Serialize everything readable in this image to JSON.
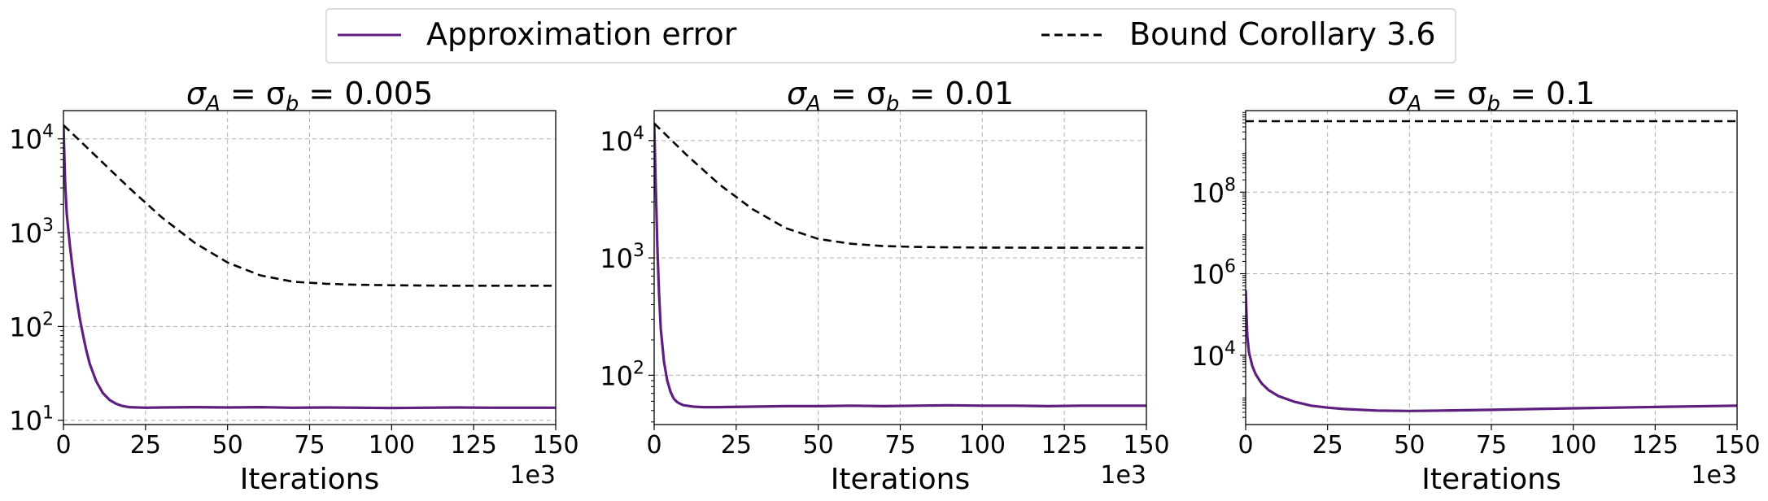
{
  "legend": {
    "items": [
      {
        "label": "Approximation error",
        "style": "solid",
        "color": "#5e1f7e"
      },
      {
        "label": "Bound Corollary 3.6",
        "style": "dashed",
        "color": "#000000"
      }
    ],
    "placement": "top-center"
  },
  "colors": {
    "error": "#5e1f7e",
    "bound": "#000000",
    "grid": "#b0b0b0"
  },
  "chart_data": [
    {
      "type": "line",
      "title_main": "σ",
      "title_sub1": "A",
      "title_mid": " = σ",
      "title_sub2": "b",
      "title_val": " = 0.005",
      "xlabel": "Iterations",
      "xscale_label": "1e3",
      "xlim": [
        0,
        150
      ],
      "xticks": [
        0,
        25,
        50,
        75,
        100,
        125,
        150
      ],
      "yscale": "log",
      "ylim": [
        9,
        20000
      ],
      "yticks": [
        10,
        100,
        1000,
        10000
      ],
      "ytick_labels": [
        {
          "base": "10",
          "exp": "1"
        },
        {
          "base": "10",
          "exp": "2"
        },
        {
          "base": "10",
          "exp": "3"
        },
        {
          "base": "10",
          "exp": "4"
        }
      ],
      "grid": true,
      "series": [
        {
          "name": "Approximation error",
          "style": "solid",
          "x": [
            0,
            0.5,
            1,
            2,
            3,
            4,
            5,
            6,
            7,
            8,
            10,
            12,
            14,
            16,
            18,
            20,
            25,
            30,
            40,
            50,
            60,
            70,
            80,
            90,
            100,
            110,
            120,
            130,
            140,
            150
          ],
          "y": [
            14000,
            3500,
            1600,
            700,
            360,
            200,
            120,
            80,
            55,
            40,
            26,
            19.5,
            16.5,
            15,
            14.2,
            13.8,
            13.6,
            13.7,
            13.8,
            13.7,
            13.8,
            13.6,
            13.7,
            13.6,
            13.5,
            13.6,
            13.7,
            13.6,
            13.6,
            13.6
          ]
        },
        {
          "name": "Bound Corollary 3.6",
          "style": "dashed",
          "x": [
            0,
            10,
            20,
            30,
            40,
            50,
            60,
            70,
            80,
            90,
            100,
            110,
            120,
            130,
            140,
            150
          ],
          "y": [
            14000,
            6500,
            3000,
            1450,
            780,
            480,
            350,
            300,
            285,
            278,
            275,
            273,
            272,
            272,
            272,
            272
          ]
        }
      ]
    },
    {
      "type": "line",
      "title_main": "σ",
      "title_sub1": "A",
      "title_mid": " = σ",
      "title_sub2": "b",
      "title_val": " = 0.01",
      "xlabel": "Iterations",
      "xscale_label": "1e3",
      "xlim": [
        0,
        150
      ],
      "xticks": [
        0,
        25,
        50,
        75,
        100,
        125,
        150
      ],
      "yscale": "log",
      "ylim": [
        38,
        18000
      ],
      "yticks": [
        100,
        1000,
        10000
      ],
      "ytick_labels": [
        {
          "base": "10",
          "exp": "2"
        },
        {
          "base": "10",
          "exp": "3"
        },
        {
          "base": "10",
          "exp": "4"
        }
      ],
      "grid": true,
      "series": [
        {
          "name": "Approximation error",
          "style": "solid",
          "x": [
            0,
            0.5,
            1,
            1.5,
            2,
            3,
            4,
            5,
            6,
            7,
            8,
            9,
            10,
            12,
            15,
            20,
            30,
            40,
            50,
            60,
            70,
            80,
            90,
            100,
            110,
            120,
            130,
            140,
            150
          ],
          "y": [
            14000,
            4000,
            1200,
            500,
            250,
            130,
            90,
            72,
            63,
            59,
            57,
            55.5,
            55,
            54,
            53.5,
            53.5,
            54,
            54.5,
            54.5,
            55,
            54.5,
            55,
            55.5,
            55,
            55,
            54.5,
            55,
            55,
            55
          ]
        },
        {
          "name": "Bound Corollary 3.6",
          "style": "dashed",
          "x": [
            0,
            10,
            20,
            30,
            40,
            50,
            60,
            70,
            80,
            90,
            100,
            110,
            120,
            130,
            140,
            150
          ],
          "y": [
            14000,
            7500,
            4200,
            2600,
            1800,
            1450,
            1320,
            1260,
            1240,
            1230,
            1225,
            1222,
            1220,
            1220,
            1220,
            1220
          ]
        }
      ]
    },
    {
      "type": "line",
      "title_main": "σ",
      "title_sub1": "A",
      "title_mid": " = σ",
      "title_sub2": "b",
      "title_val": " = 0.1",
      "xlabel": "Iterations",
      "xscale_label": "1e3",
      "xlim": [
        0,
        150
      ],
      "xticks": [
        0,
        25,
        50,
        75,
        100,
        125,
        150
      ],
      "yscale": "log",
      "ylim": [
        200,
        10000000000
      ],
      "yticks": [
        10000,
        1000000,
        100000000
      ],
      "ytick_labels": [
        {
          "base": "10",
          "exp": "4"
        },
        {
          "base": "10",
          "exp": "6"
        },
        {
          "base": "10",
          "exp": "8"
        }
      ],
      "grid": true,
      "series": [
        {
          "name": "Approximation error",
          "style": "solid",
          "x": [
            0,
            0.5,
            1,
            2,
            3,
            4,
            5,
            7,
            10,
            15,
            20,
            25,
            30,
            40,
            50,
            60,
            75,
            100,
            125,
            150
          ],
          "y": [
            400000,
            30000,
            12000,
            5500,
            3500,
            2600,
            2000,
            1400,
            1000,
            720,
            580,
            520,
            480,
            440,
            430,
            440,
            460,
            500,
            540,
            580
          ]
        },
        {
          "name": "Bound Corollary 3.6",
          "style": "dashed",
          "x": [
            0,
            150
          ],
          "y": [
            5500000000,
            5500000000
          ]
        }
      ]
    }
  ]
}
